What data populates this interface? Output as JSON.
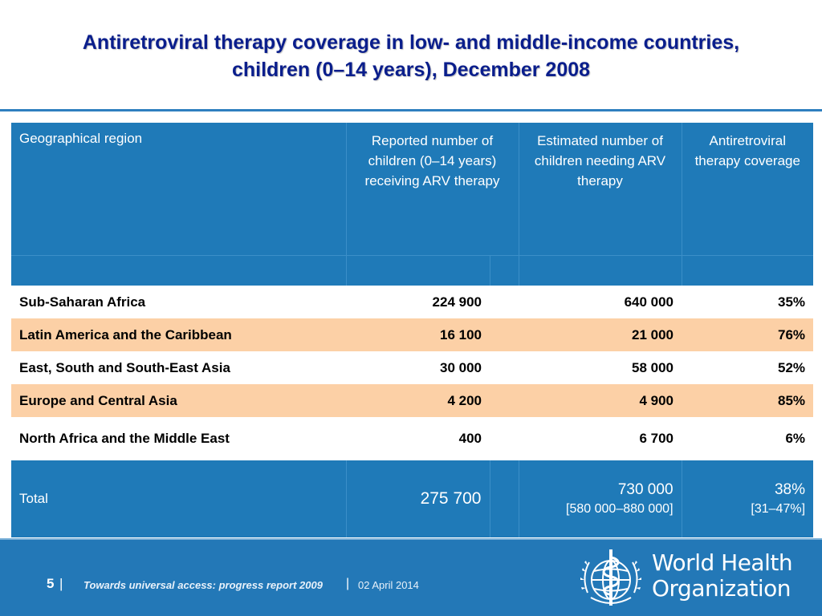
{
  "title": {
    "line1": "Antiretroviral therapy coverage in low- and middle-income countries,",
    "line2": "children (0–14 years), December 2008"
  },
  "table": {
    "headers": {
      "region": "Geographical region",
      "reported": "Reported number of children (0–14 years) receiving ARV therapy",
      "estimated": "Estimated number of children needing ARV therapy",
      "coverage": "Antiretroviral therapy coverage"
    },
    "rows": [
      {
        "region": "Sub-Saharan Africa",
        "reported": "224 900",
        "estimated": "640 000",
        "coverage": "35%"
      },
      {
        "region": "Latin America and the Caribbean",
        "reported": "16 100",
        "estimated": "21 000",
        "coverage": "76%"
      },
      {
        "region": "East, South and South-East Asia",
        "reported": "30 000",
        "estimated": "58 000",
        "coverage": "52%"
      },
      {
        "region": "Europe and Central Asia",
        "reported": "4 200",
        "estimated": "4 900",
        "coverage": "85%"
      },
      {
        "region": "North Africa and the Middle East",
        "reported": "400",
        "estimated": "6 700",
        "coverage": "6%"
      }
    ],
    "total": {
      "label": "Total",
      "reported": "275 700",
      "estimated": "730 000",
      "estimated_range": "[580 000–880 000]",
      "coverage": "38%",
      "coverage_range": "[31–47%]"
    }
  },
  "footer": {
    "page_number": "5",
    "separator": "|",
    "report_title": "Towards universal access: progress report 2009",
    "date": "02 April 2014",
    "org_line1": "World Health",
    "org_line2": "Organization",
    "logo_icon": "who-emblem-icon"
  },
  "colors": {
    "header_blue": "#1f7ab8",
    "row_highlight": "#fcd0a6",
    "title_blue": "#0a1e8c"
  }
}
